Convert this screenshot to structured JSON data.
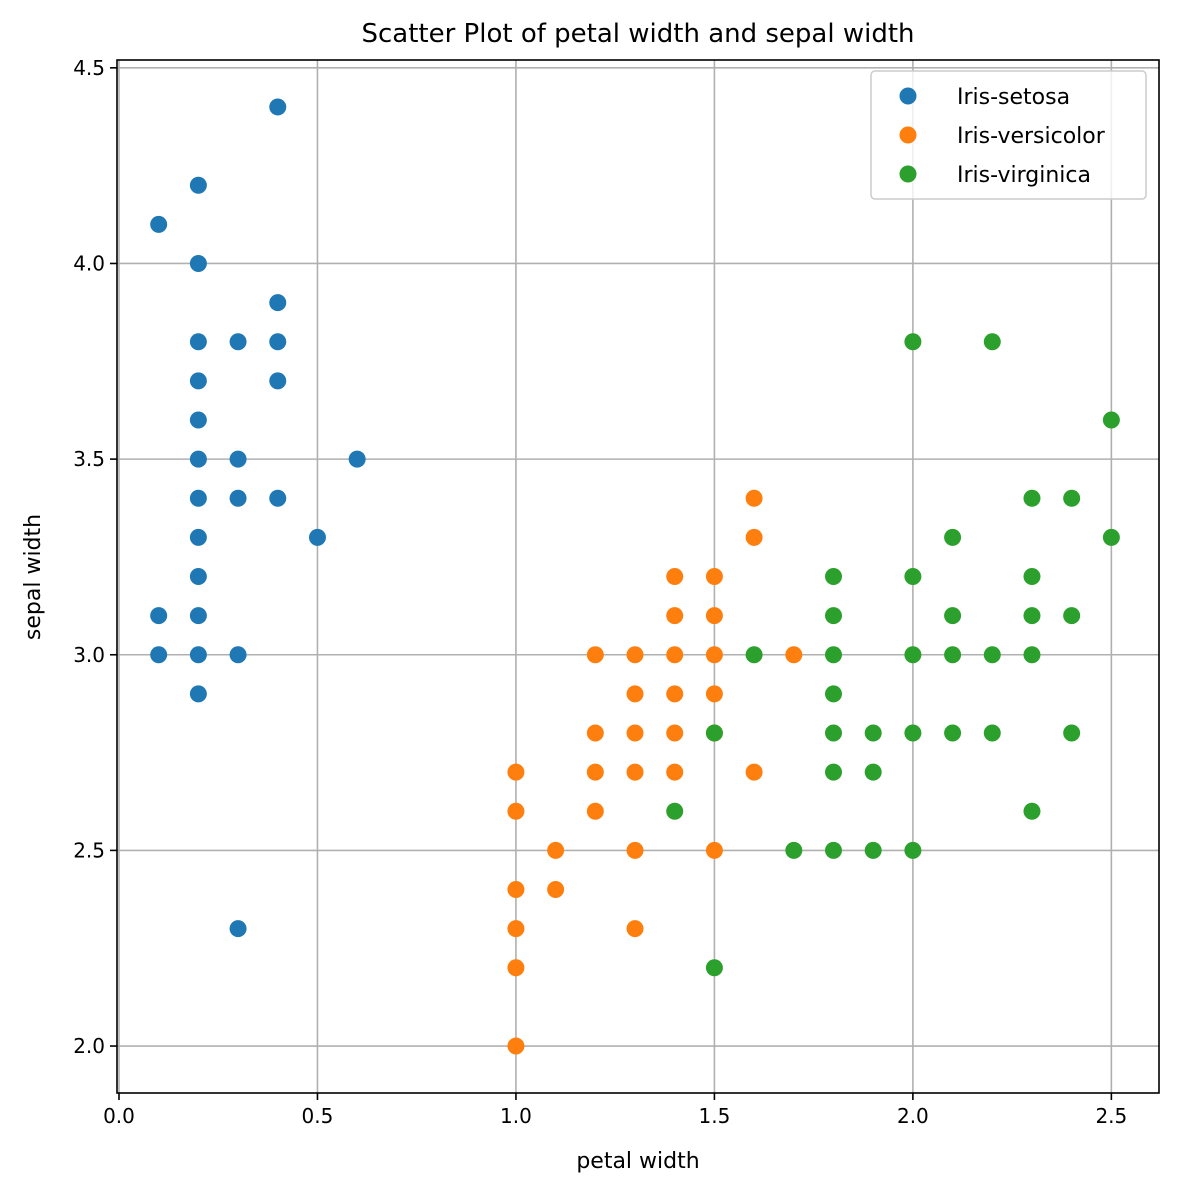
{
  "chart_data": {
    "type": "scatter",
    "title": "Scatter Plot of petal width and sepal width",
    "xlabel": "petal width",
    "ylabel": "sepal width",
    "xlim": [
      -0.005,
      2.62
    ],
    "ylim": [
      1.88,
      4.52
    ],
    "xticks": [
      0.0,
      0.5,
      1.0,
      1.5,
      2.0,
      2.5
    ],
    "xtick_labels": [
      "0.0",
      "0.5",
      "1.0",
      "1.5",
      "2.0",
      "2.5"
    ],
    "yticks": [
      2.0,
      2.5,
      3.0,
      3.5,
      4.0,
      4.5
    ],
    "ytick_labels": [
      "2.0",
      "2.5",
      "3.0",
      "3.5",
      "4.0",
      "4.5"
    ],
    "grid": true,
    "legend_position": "top-right",
    "series": [
      {
        "name": "Iris-setosa",
        "color": "#1f77b4",
        "points": [
          [
            0.4,
            4.4
          ],
          [
            0.2,
            4.2
          ],
          [
            0.1,
            4.1
          ],
          [
            0.2,
            4.0
          ],
          [
            0.4,
            3.9
          ],
          [
            0.2,
            3.8
          ],
          [
            0.3,
            3.8
          ],
          [
            0.4,
            3.8
          ],
          [
            0.2,
            3.7
          ],
          [
            0.4,
            3.7
          ],
          [
            0.2,
            3.6
          ],
          [
            0.2,
            3.5
          ],
          [
            0.3,
            3.5
          ],
          [
            0.6,
            3.5
          ],
          [
            0.2,
            3.4
          ],
          [
            0.3,
            3.4
          ],
          [
            0.4,
            3.4
          ],
          [
            0.5,
            3.3
          ],
          [
            0.2,
            3.3
          ],
          [
            0.2,
            3.2
          ],
          [
            0.1,
            3.1
          ],
          [
            0.2,
            3.1
          ],
          [
            0.1,
            3.0
          ],
          [
            0.2,
            3.0
          ],
          [
            0.3,
            3.0
          ],
          [
            0.2,
            2.9
          ],
          [
            0.3,
            2.3
          ]
        ]
      },
      {
        "name": "Iris-versicolor",
        "color": "#ff7f0e",
        "points": [
          [
            1.6,
            3.4
          ],
          [
            1.6,
            3.3
          ],
          [
            1.4,
            3.2
          ],
          [
            1.5,
            3.2
          ],
          [
            1.4,
            3.1
          ],
          [
            1.5,
            3.1
          ],
          [
            1.2,
            3.0
          ],
          [
            1.3,
            3.0
          ],
          [
            1.4,
            3.0
          ],
          [
            1.5,
            3.0
          ],
          [
            1.7,
            3.0
          ],
          [
            1.3,
            2.9
          ],
          [
            1.4,
            2.9
          ],
          [
            1.5,
            2.9
          ],
          [
            1.2,
            2.8
          ],
          [
            1.3,
            2.8
          ],
          [
            1.4,
            2.8
          ],
          [
            1.5,
            2.8
          ],
          [
            1.0,
            2.7
          ],
          [
            1.2,
            2.7
          ],
          [
            1.3,
            2.7
          ],
          [
            1.4,
            2.7
          ],
          [
            1.6,
            2.7
          ],
          [
            1.0,
            2.6
          ],
          [
            1.2,
            2.6
          ],
          [
            1.1,
            2.5
          ],
          [
            1.3,
            2.5
          ],
          [
            1.5,
            2.5
          ],
          [
            1.0,
            2.4
          ],
          [
            1.1,
            2.4
          ],
          [
            1.0,
            2.3
          ],
          [
            1.3,
            2.3
          ],
          [
            1.0,
            2.2
          ],
          [
            1.0,
            2.0
          ]
        ]
      },
      {
        "name": "Iris-virginica",
        "color": "#2ca02c",
        "points": [
          [
            2.0,
            3.8
          ],
          [
            2.2,
            3.8
          ],
          [
            2.5,
            3.6
          ],
          [
            2.3,
            3.4
          ],
          [
            2.4,
            3.4
          ],
          [
            2.1,
            3.3
          ],
          [
            2.5,
            3.3
          ],
          [
            1.8,
            3.2
          ],
          [
            2.0,
            3.2
          ],
          [
            2.3,
            3.2
          ],
          [
            1.8,
            3.1
          ],
          [
            2.1,
            3.1
          ],
          [
            2.3,
            3.1
          ],
          [
            2.4,
            3.1
          ],
          [
            1.6,
            3.0
          ],
          [
            1.8,
            3.0
          ],
          [
            2.0,
            3.0
          ],
          [
            2.1,
            3.0
          ],
          [
            2.2,
            3.0
          ],
          [
            2.3,
            3.0
          ],
          [
            1.8,
            2.9
          ],
          [
            1.5,
            2.8
          ],
          [
            1.8,
            2.8
          ],
          [
            1.9,
            2.8
          ],
          [
            2.0,
            2.8
          ],
          [
            2.1,
            2.8
          ],
          [
            2.2,
            2.8
          ],
          [
            2.4,
            2.8
          ],
          [
            1.8,
            2.7
          ],
          [
            1.9,
            2.7
          ],
          [
            1.4,
            2.6
          ],
          [
            2.3,
            2.6
          ],
          [
            1.7,
            2.5
          ],
          [
            1.8,
            2.5
          ],
          [
            1.9,
            2.5
          ],
          [
            2.0,
            2.5
          ],
          [
            1.5,
            2.2
          ]
        ]
      }
    ]
  }
}
